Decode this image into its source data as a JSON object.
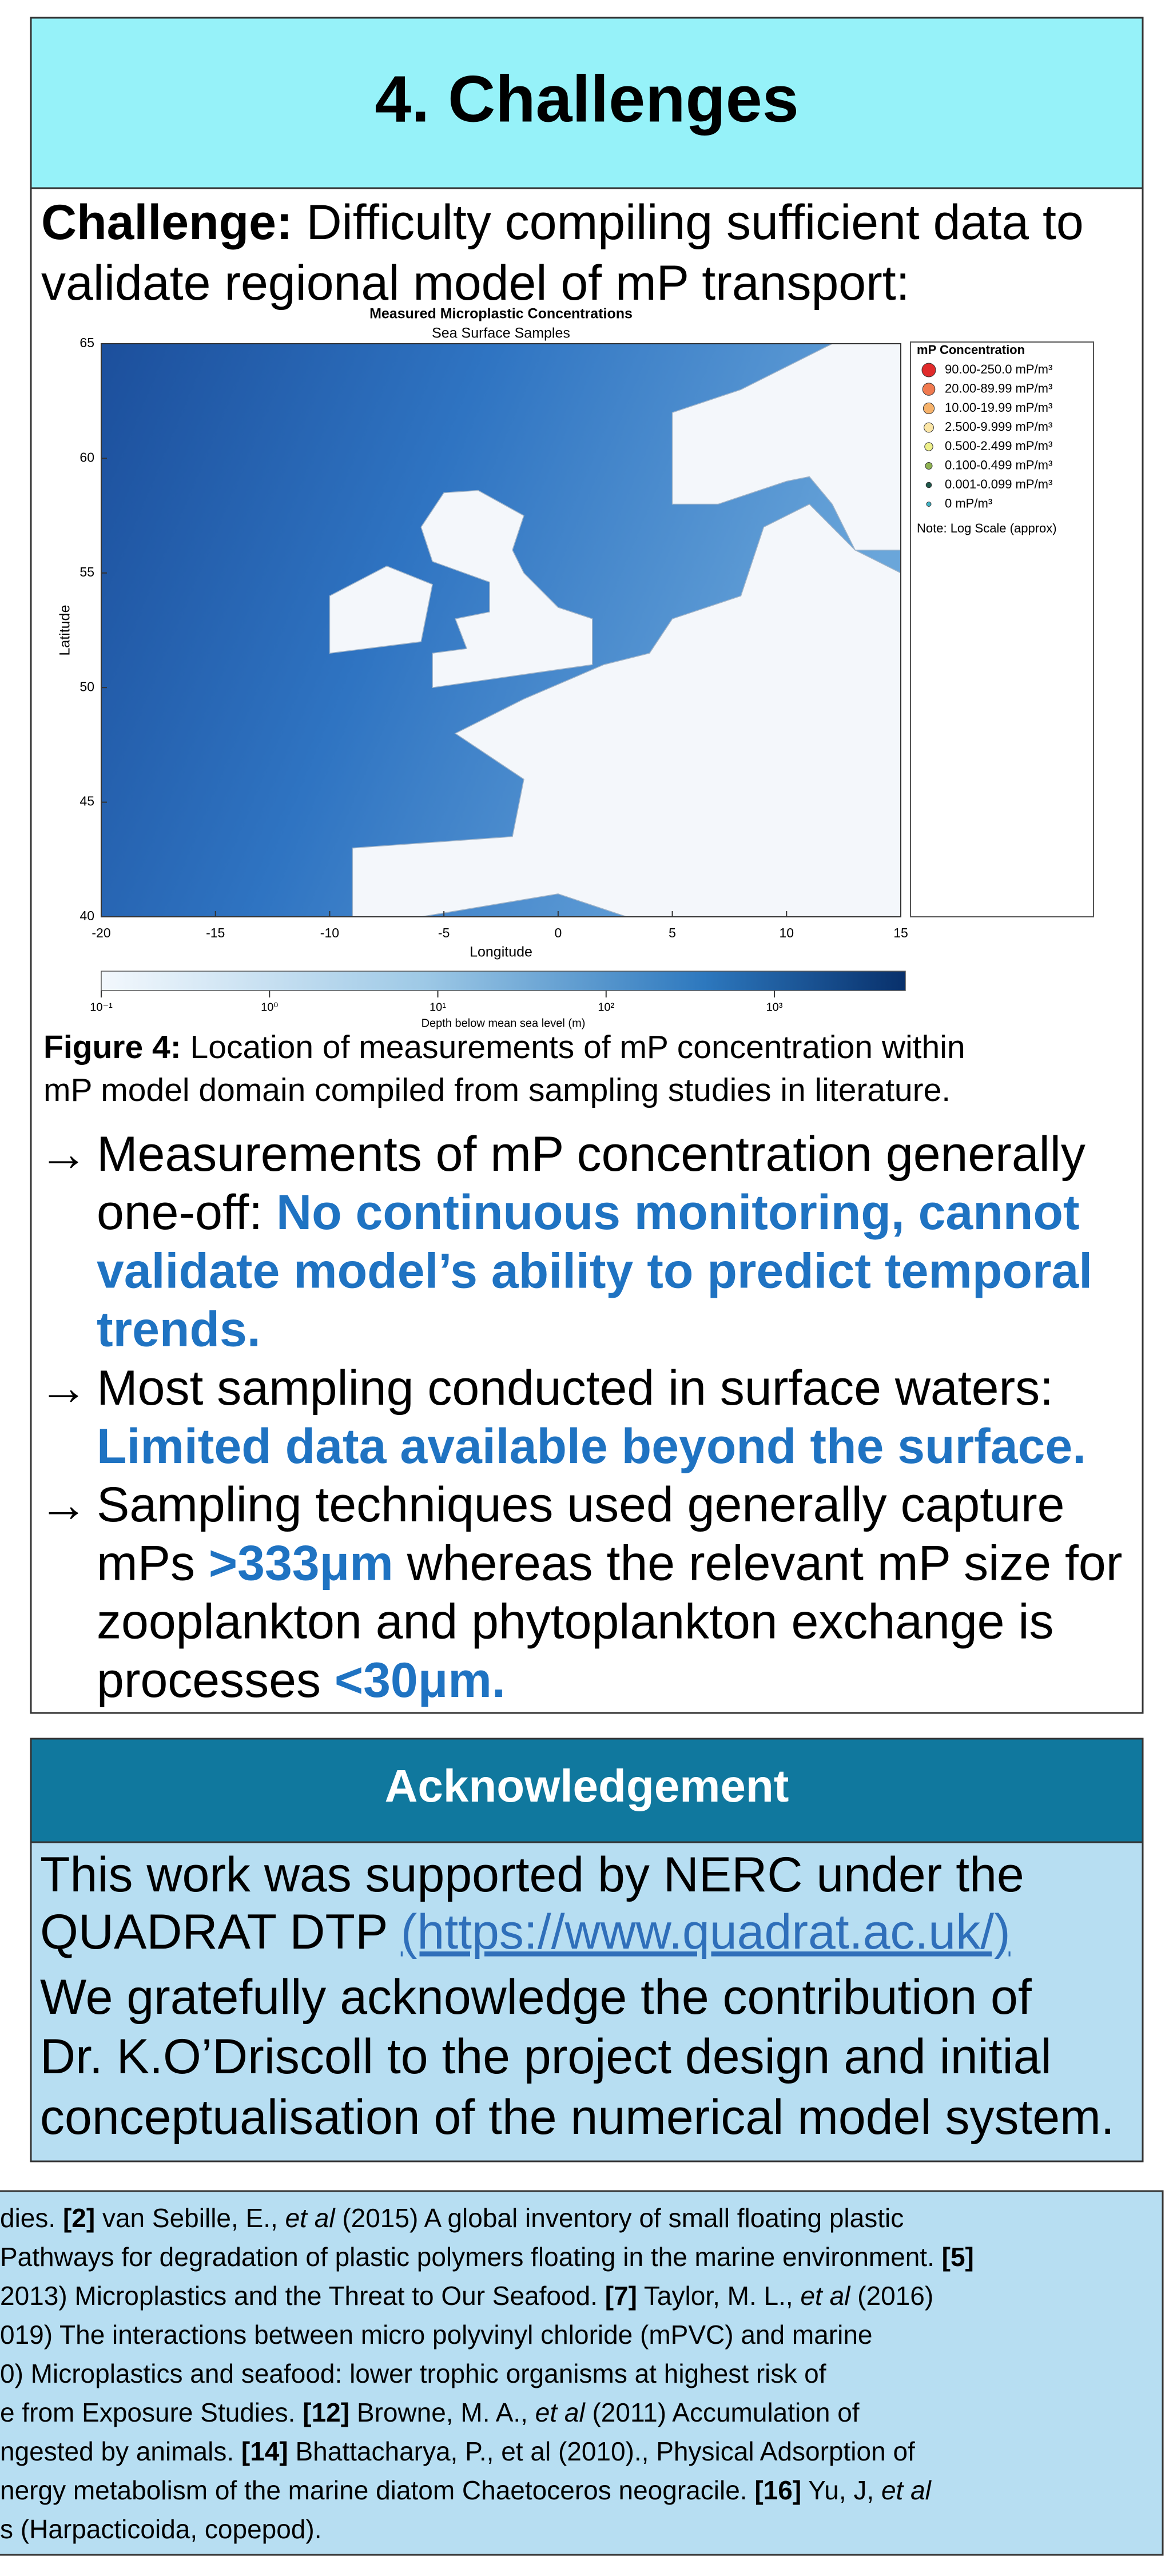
{
  "header": {
    "title": "4. Challenges"
  },
  "challenge": {
    "lines": [
      [
        {
          "text": "Challenge:",
          "style": "bold"
        },
        {
          "text": " Difficulty compiling sufficient data to"
        }
      ],
      [
        {
          "text": "validate regional model of mP transport:"
        }
      ]
    ]
  },
  "figure": {
    "title": "Measured Microplastic Concentrations",
    "subtitle": "Sea Surface Samples",
    "xlabel": "Longitude",
    "ylabel": "Latitude",
    "xlim": [
      -20,
      15
    ],
    "ylim": [
      40,
      65
    ],
    "xticks": [
      -20,
      -15,
      -10,
      -5,
      0,
      5,
      10,
      15
    ],
    "yticks": [
      40,
      45,
      50,
      55,
      60,
      65
    ],
    "legend": {
      "title": "mP Concentration",
      "entries": [
        {
          "label": "90.00-250.0 mP/m³",
          "color": "#e02b2b"
        },
        {
          "label": "20.00-89.99 mP/m³",
          "color": "#f07a50"
        },
        {
          "label": "10.00-19.99 mP/m³",
          "color": "#f6b26b"
        },
        {
          "label": "2.500-9.999 mP/m³",
          "color": "#fbe6a6"
        },
        {
          "label": "0.500-2.499 mP/m³",
          "color": "#eef08a"
        },
        {
          "label": "0.100-0.499 mP/m³",
          "color": "#8fb352"
        },
        {
          "label": "0.001-0.099 mP/m³",
          "color": "#1f5a4c"
        },
        {
          "label": "0 mP/m³",
          "color": "#3fb3c4"
        }
      ],
      "note": "Note: Log Scale (approx)"
    },
    "colorbar": {
      "label": "Depth below mean sea level (m)",
      "lim": [
        0.1,
        6000
      ],
      "log": true,
      "ticks": [
        {
          "value": 0.1,
          "label": "10⁻¹"
        },
        {
          "value": 1,
          "label": "10⁰"
        },
        {
          "value": 10,
          "label": "10¹"
        },
        {
          "value": 100,
          "label": "10²"
        },
        {
          "value": 1000,
          "label": "10³"
        }
      ]
    },
    "caption": {
      "lines": [
        [
          {
            "text": "Figure 4:",
            "style": "bold"
          },
          {
            "text": " Location of measurements of mP concentration within"
          }
        ],
        [
          {
            "text": "mP model domain compiled from sampling studies in literature."
          }
        ]
      ]
    }
  },
  "bullets": [
    {
      "marker": "→",
      "lines": [
        [
          {
            "text": "Measurements of mP concentration generally"
          }
        ],
        [
          {
            "text": "one-off: "
          },
          {
            "text": "No continuous monitoring, cannot",
            "style": "blue"
          }
        ],
        [
          {
            "text": "validate model’s ability to predict temporal",
            "style": "blue"
          }
        ],
        [
          {
            "text": "trends.",
            "style": "blue"
          }
        ]
      ]
    },
    {
      "marker": "→",
      "lines": [
        [
          {
            "text": "Most sampling conducted in surface waters:"
          }
        ],
        [
          {
            "text": "Limited data available beyond the surface.",
            "style": "blue"
          }
        ]
      ]
    },
    {
      "marker": "→",
      "lines": [
        [
          {
            "text": "Sampling techniques used generally capture"
          }
        ],
        [
          {
            "text": "mPs "
          },
          {
            "text": ">333μm",
            "style": "blue"
          },
          {
            "text": " whereas the relevant mP size for"
          }
        ],
        [
          {
            "text": "zooplankton and phytoplankton exchange is"
          }
        ],
        [
          {
            "text": "processes "
          },
          {
            "text": "<30μm.",
            "style": "blue"
          }
        ]
      ]
    }
  ],
  "acknowledgement": {
    "title": "Acknowledgement",
    "lines": [
      [
        {
          "text": "This work was supported by NERC under the"
        }
      ],
      [
        {
          "text": "QUADRAT DTP "
        },
        {
          "text": "(https://www.quadrat.ac.uk/)",
          "style": "link"
        }
      ],
      [
        {
          "text": "We gratefully acknowledge the contribution of"
        }
      ],
      [
        {
          "text": "Dr. K.O’Driscoll to the project design and initial"
        }
      ],
      [
        {
          "text": "conceptualisation of the numerical model system."
        }
      ]
    ]
  },
  "references": {
    "lines": [
      [
        {
          "text": "dies. "
        },
        {
          "text": "[2]",
          "style": "bold"
        },
        {
          "text": " van Sebille, E., "
        },
        {
          "text": "et al",
          "style": "italic"
        },
        {
          "text": " (2015) A global inventory of small floating plastic"
        }
      ],
      [
        {
          "text": "Pathways for degradation of plastic polymers floating in the marine environment. "
        },
        {
          "text": "[5]",
          "style": "bold"
        }
      ],
      [
        {
          "text": "2013) Microplastics and the Threat to Our Seafood. "
        },
        {
          "text": "[7]",
          "style": "bold"
        },
        {
          "text": " Taylor, M. L., "
        },
        {
          "text": "et al",
          "style": "italic"
        },
        {
          "text": " (2016)"
        }
      ],
      [
        {
          "text": "019) The interactions between micro polyvinyl chloride (mPVC) and marine"
        }
      ],
      [
        {
          "text": "0) Microplastics and seafood: lower trophic organisms at highest risk of"
        }
      ],
      [
        {
          "text": "e from Exposure Studies. "
        },
        {
          "text": "[12]",
          "style": "bold"
        },
        {
          "text": " Browne, M. A., "
        },
        {
          "text": "et al",
          "style": "italic"
        },
        {
          "text": " (2011) Accumulation of"
        }
      ],
      [
        {
          "text": "ngested by animals. "
        },
        {
          "text": "[14]",
          "style": "bold"
        },
        {
          "text": " Bhattacharya, P., et al (2010)., Physical Adsorption of"
        }
      ],
      [
        {
          "text": "nergy metabolism of the marine diatom Chaetoceros neogracile. "
        },
        {
          "text": "[16]",
          "style": "bold"
        },
        {
          "text": " Yu, J, "
        },
        {
          "text": "et al",
          "style": "italic"
        }
      ],
      [
        {
          "text": "s (Harpacticoida, copepod)."
        }
      ]
    ]
  }
}
